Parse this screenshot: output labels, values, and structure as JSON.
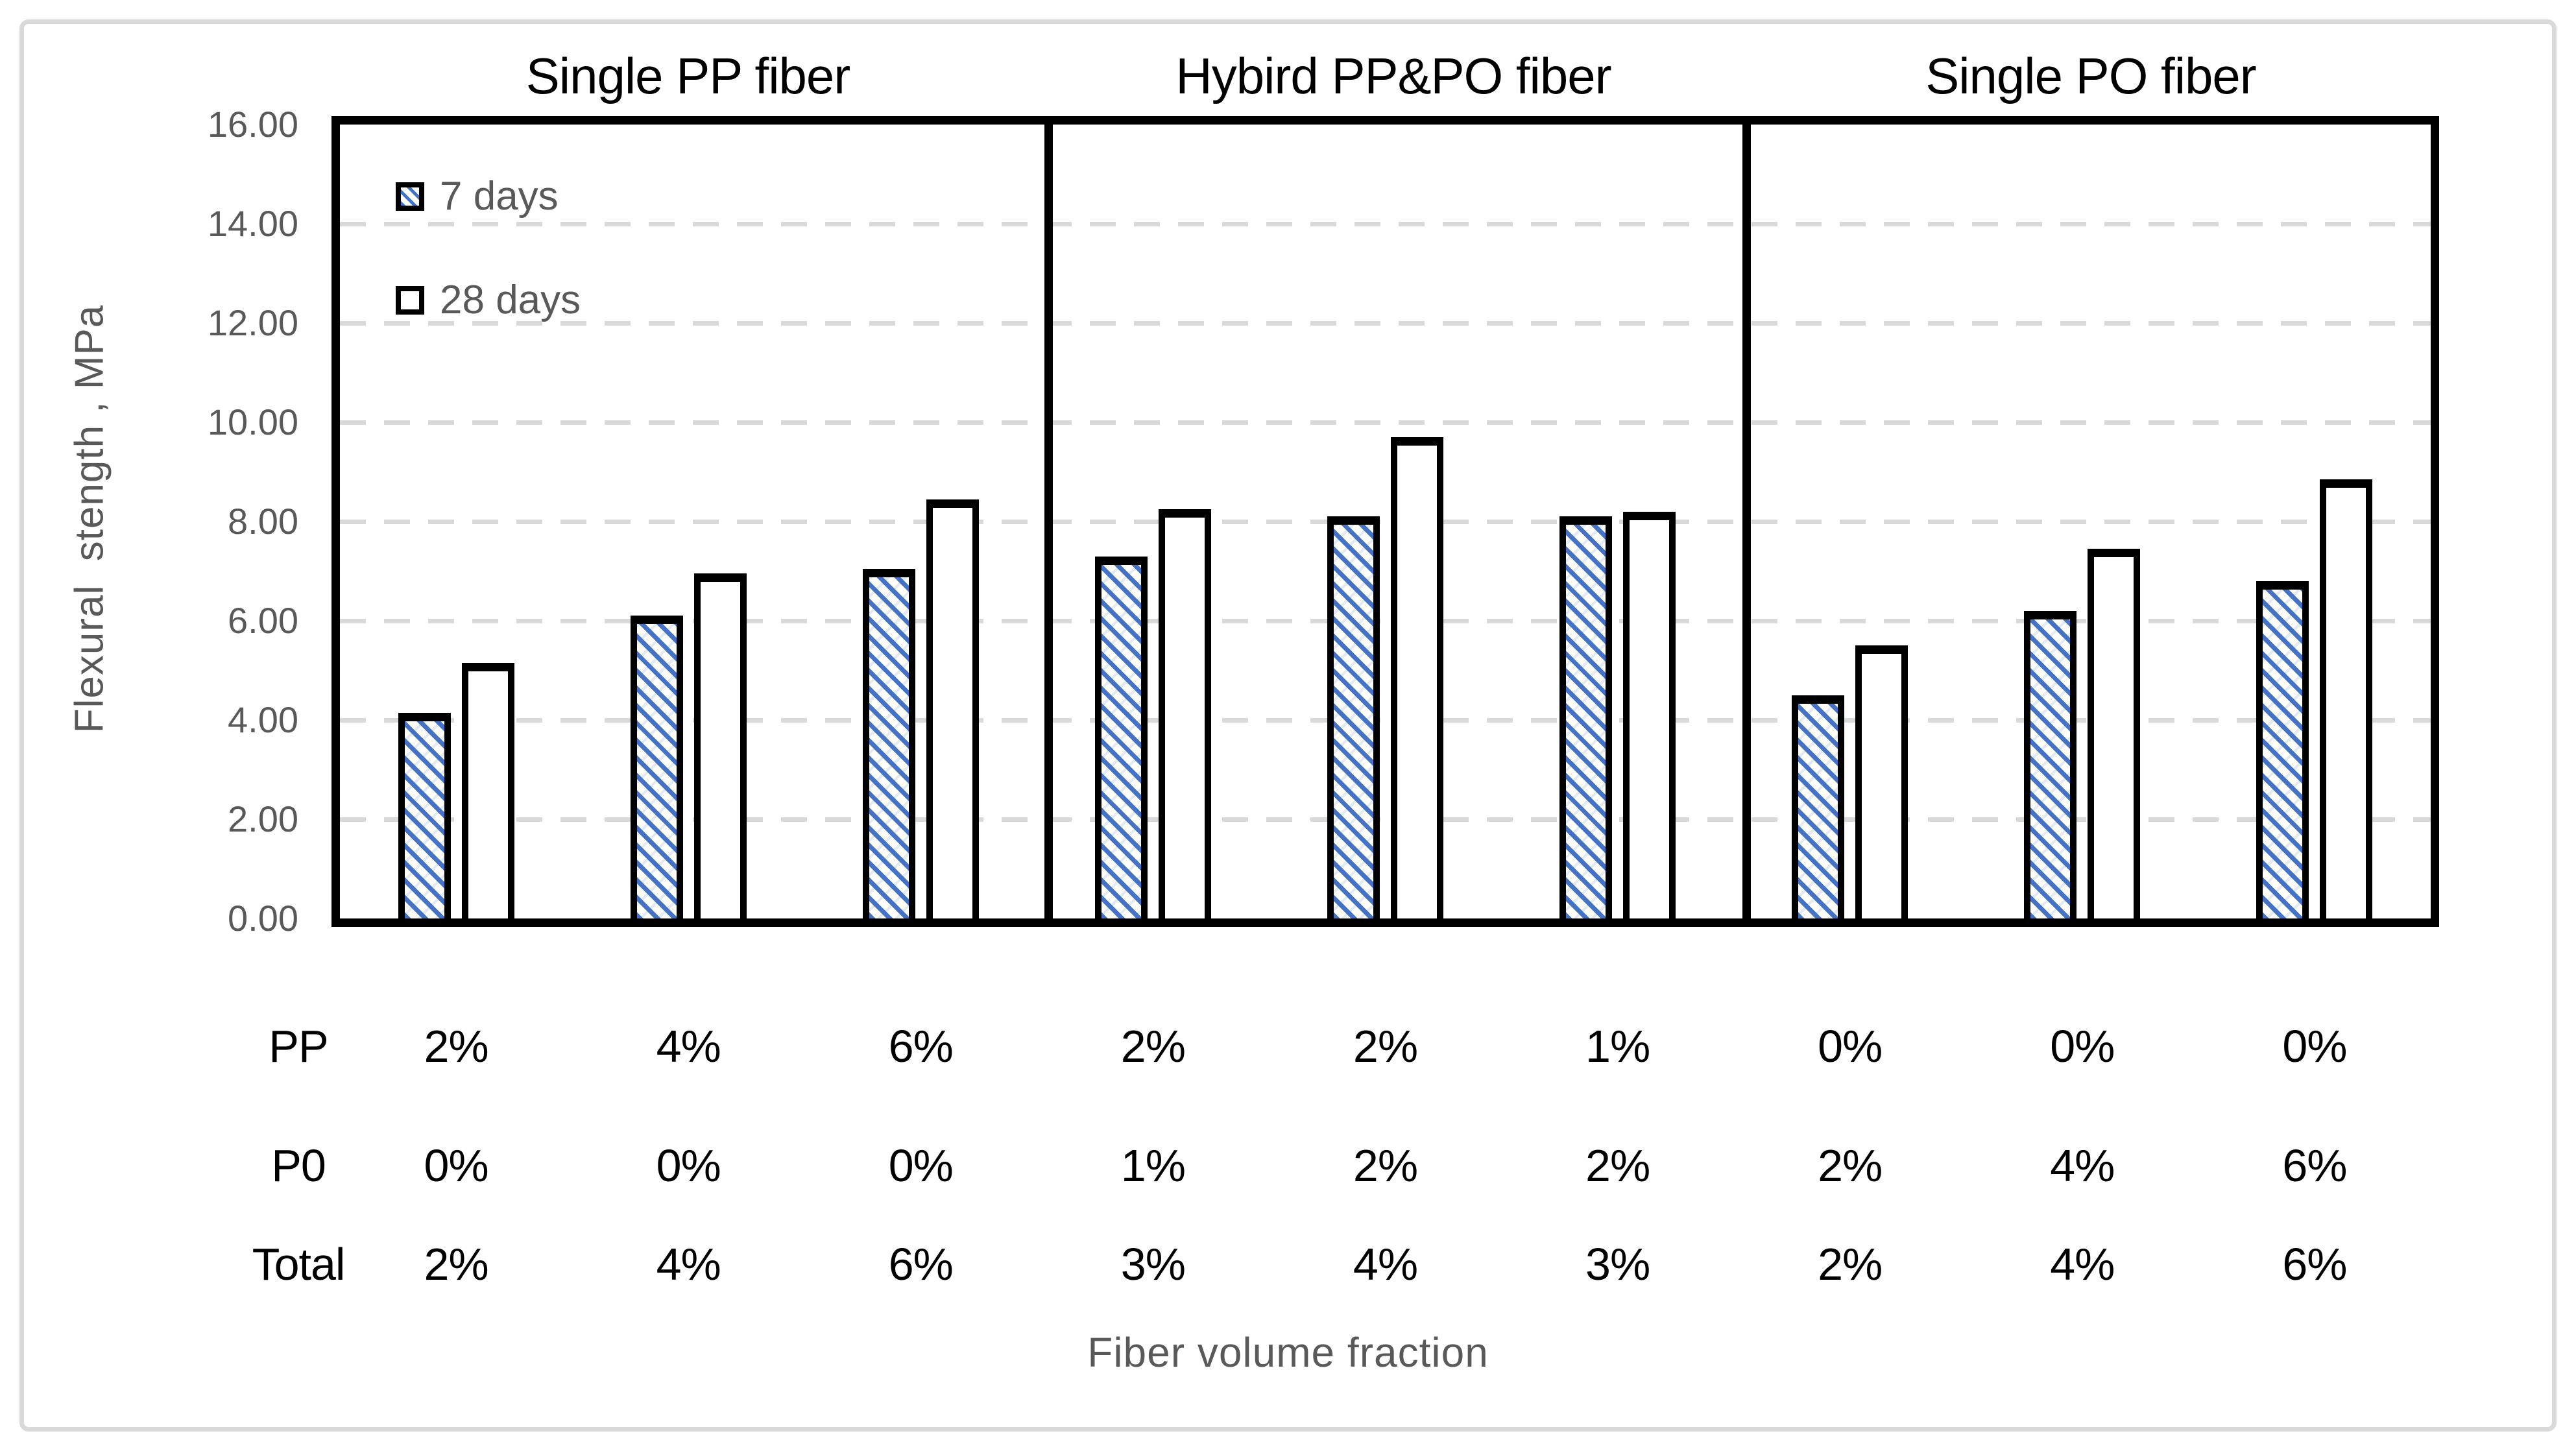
{
  "chart_data": {
    "type": "bar",
    "panel_titles": [
      "Single PP fiber",
      "Hybird PP&PO fiber",
      "Single PO fiber"
    ],
    "ylabel": "Flexural  stength , MPa",
    "xlabel": "Fiber volume fraction",
    "ylim": [
      0,
      16
    ],
    "ytick_step": 2,
    "yticks": [
      "0.00",
      "2.00",
      "4.00",
      "6.00",
      "8.00",
      "10.00",
      "12.00",
      "14.00",
      "16.00"
    ],
    "grid": "dashed horizontal",
    "legend_position": "top-left inside plot",
    "legend": [
      "7 days",
      "28 days"
    ],
    "series": [
      {
        "name": "7 days",
        "style": "blue-diagonal-hatch",
        "values": [
          4.15,
          6.1,
          7.05,
          7.3,
          8.1,
          8.1,
          4.5,
          6.2,
          6.8
        ]
      },
      {
        "name": "28 days",
        "style": "white",
        "values": [
          5.15,
          6.95,
          8.45,
          8.25,
          9.7,
          8.2,
          5.5,
          7.45,
          8.85
        ]
      }
    ],
    "panels": [
      {
        "title": "Single PP fiber",
        "group_indices": [
          0,
          1,
          2
        ]
      },
      {
        "title": "Hybird PP&PO fiber",
        "group_indices": [
          3,
          4,
          5
        ]
      },
      {
        "title": "Single PO fiber",
        "group_indices": [
          6,
          7,
          8
        ]
      }
    ],
    "table": {
      "rows": [
        {
          "label": "PP",
          "values": [
            "2%",
            "4%",
            "6%",
            "2%",
            "2%",
            "1%",
            "0%",
            "0%",
            "0%"
          ]
        },
        {
          "label": "P0",
          "values": [
            "0%",
            "0%",
            "0%",
            "1%",
            "2%",
            "2%",
            "2%",
            "4%",
            "6%"
          ]
        },
        {
          "label": "Total",
          "values": [
            "2%",
            "4%",
            "6%",
            "3%",
            "4%",
            "3%",
            "2%",
            "4%",
            "6%"
          ]
        }
      ]
    },
    "colors": {
      "hatch_blue": "#4472C4",
      "bar_border": "#000000",
      "gridline": "#D9D9D9",
      "axis_text": "#595959",
      "table_text": "#000000",
      "figure_border": "#D9D9D9"
    }
  }
}
